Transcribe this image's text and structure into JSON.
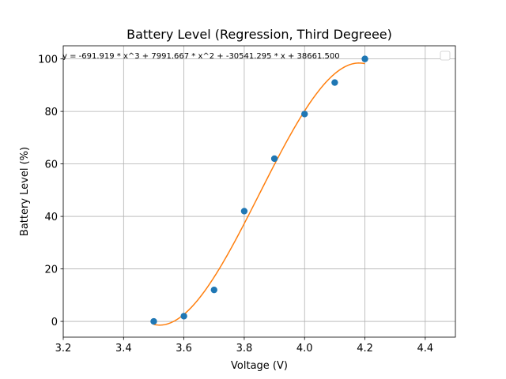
{
  "chart_data": {
    "type": "scatter",
    "title": "Battery Level (Regression, Third Degreee)",
    "xlabel": "Voltage (V)",
    "ylabel": "Battery Level (%)",
    "xlim": [
      3.2,
      4.5
    ],
    "ylim": [
      -6,
      105
    ],
    "xticks": [
      3.2,
      3.4,
      3.6,
      3.8,
      4.0,
      4.2,
      4.4
    ],
    "xtick_labels": [
      "3.2",
      "3.4",
      "3.6",
      "3.8",
      "4.0",
      "4.2",
      "4.4"
    ],
    "yticks": [
      0,
      20,
      40,
      60,
      80,
      100
    ],
    "ytick_labels": [
      "0",
      "20",
      "40",
      "60",
      "80",
      "100"
    ],
    "grid": true,
    "legend": "top-right",
    "points": {
      "color": "#1f77b4",
      "x": [
        3.5,
        3.6,
        3.7,
        3.8,
        3.9,
        4.0,
        4.1,
        4.2
      ],
      "y": [
        0,
        2,
        12,
        42,
        62,
        79,
        91,
        100
      ]
    },
    "fit": {
      "color": "#ff7f0e",
      "coefficients": [
        -691.919,
        7991.667,
        -30541.295,
        38661.5
      ],
      "x_range": [
        3.5,
        4.2
      ]
    },
    "annotation": "y = -691.919 * x^3 + 7991.667 * x^2 + -30541.295 * x + 38661.500"
  }
}
